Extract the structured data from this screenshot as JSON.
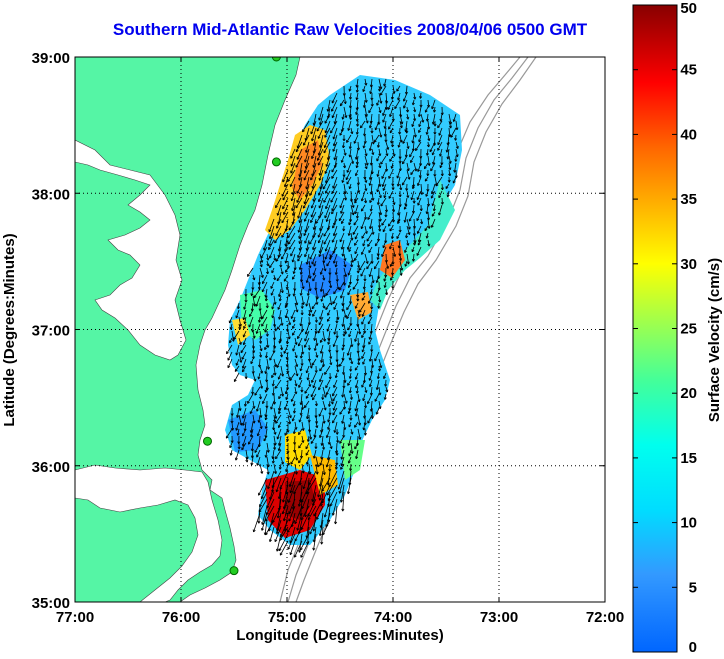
{
  "title": "Southern Mid-Atlantic Raw Velocities 2008/04/06 0500 GMT",
  "x_axis": {
    "label": "Longitude (Degrees:Minutes)",
    "ticks": [
      {
        "value": -77,
        "label": "77:00"
      },
      {
        "value": -76,
        "label": "76:00"
      },
      {
        "value": -75,
        "label": "75:00"
      },
      {
        "value": -74,
        "label": "74:00"
      },
      {
        "value": -73,
        "label": "73:00"
      },
      {
        "value": -72,
        "label": "72:00"
      }
    ],
    "range": [
      -77,
      -72
    ]
  },
  "y_axis": {
    "label": "Latitude (Degrees:Minutes)",
    "ticks": [
      {
        "value": 39,
        "label": "39:00"
      },
      {
        "value": 38,
        "label": "38:00"
      },
      {
        "value": 37,
        "label": "37:00"
      },
      {
        "value": 36,
        "label": "36:00"
      },
      {
        "value": 35,
        "label": "35:00"
      }
    ],
    "range": [
      35,
      39
    ]
  },
  "colorbar": {
    "label": "Surface Velocity (cm/s)",
    "ticks": [
      "0",
      "5",
      "10",
      "15",
      "20",
      "25",
      "30",
      "35",
      "40",
      "45",
      "50"
    ],
    "range": [
      0,
      50
    ],
    "colormap": "jet"
  },
  "colors": {
    "land": "#55f5a5",
    "water": "#ffffff",
    "title": "#0000ee",
    "grid": "#000000",
    "bathymetry": "#999999",
    "station": "#22cc22"
  },
  "grid": "dotted",
  "stations": [
    {
      "lon": -75.1,
      "lat": 39.0
    },
    {
      "lon": -75.1,
      "lat": 38.23
    },
    {
      "lon": -75.75,
      "lat": 36.18
    },
    {
      "lon": -75.5,
      "lat": 35.23
    }
  ]
}
